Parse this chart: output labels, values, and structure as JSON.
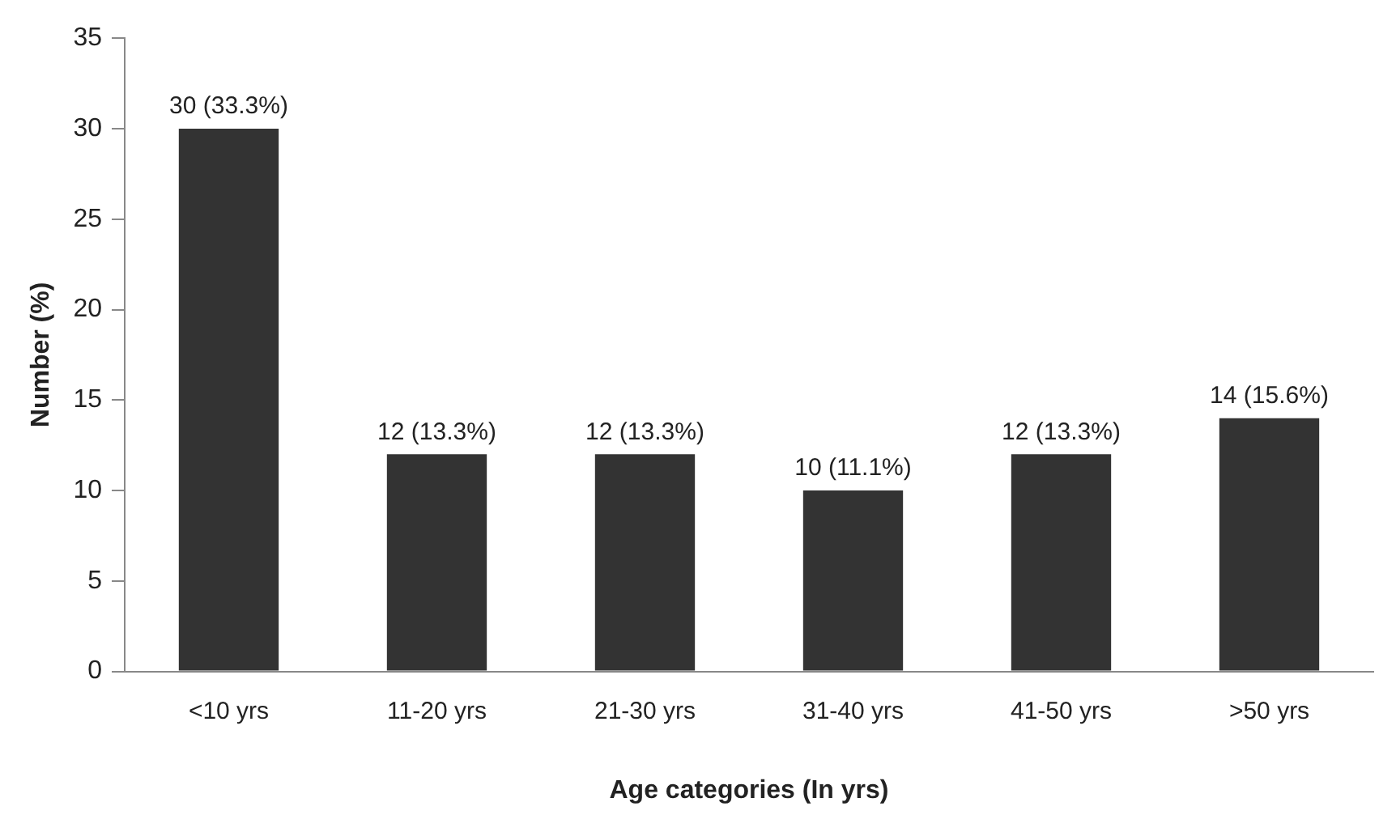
{
  "chart_data": {
    "type": "bar",
    "xlabel": "Age categories (In yrs)",
    "ylabel": "Number (%)",
    "categories": [
      "<10 yrs",
      "11-20 yrs",
      "21-30 yrs",
      "31-40 yrs",
      "41-50 yrs",
      ">50 yrs"
    ],
    "values": [
      30,
      12,
      12,
      10,
      12,
      14
    ],
    "value_labels": [
      "30 (33.3%)",
      "12 (13.3%)",
      "12 (13.3%)",
      "10 (11.1%)",
      "12 (13.3%)",
      "14 (15.6%)"
    ],
    "color": "#333333",
    "ylim": [
      0,
      35
    ],
    "yticks": [
      0,
      5,
      10,
      15,
      20,
      25,
      30,
      35
    ],
    "grid": false,
    "legend": false
  }
}
